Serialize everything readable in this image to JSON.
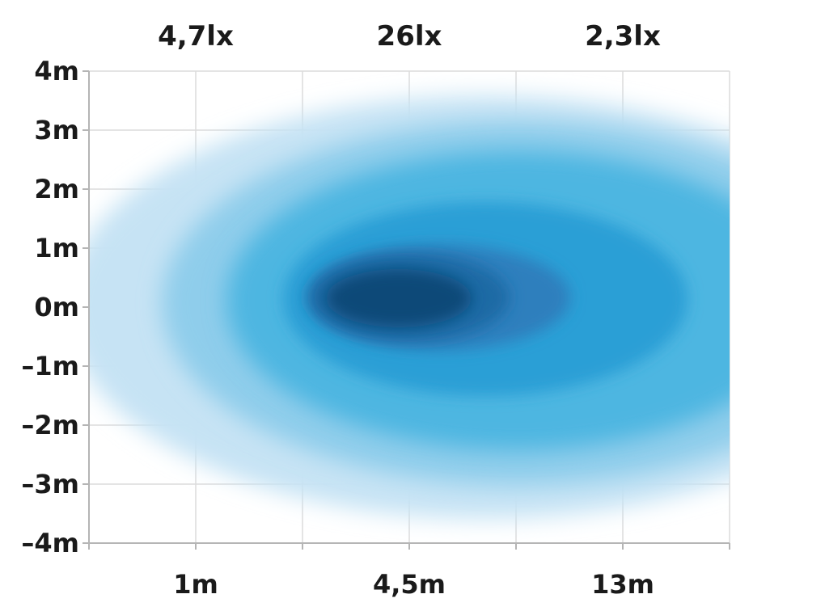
{
  "chart_data": {
    "type": "heatmap",
    "title": "",
    "xlabel": "",
    "ylabel": "",
    "top_labels": [
      {
        "text": "4,7lx",
        "at_x_tick": 1
      },
      {
        "text": "26lx",
        "at_x_tick": 3
      },
      {
        "text": "2,3lx",
        "at_x_tick": 5
      }
    ],
    "x_tick_labels": [
      {
        "text": "1m",
        "at_x_tick": 1
      },
      {
        "text": "4,5m",
        "at_x_tick": 3
      },
      {
        "text": "13m",
        "at_x_tick": 5
      }
    ],
    "x_tick_count": 7,
    "y_ticks": [
      {
        "value": 4,
        "text": "4m"
      },
      {
        "value": 3,
        "text": "3m"
      },
      {
        "value": 2,
        "text": "2m"
      },
      {
        "value": 1,
        "text": "1m"
      },
      {
        "value": 0,
        "text": "0m"
      },
      {
        "value": -1,
        "text": "–1m"
      },
      {
        "value": -2,
        "text": "–2m"
      },
      {
        "value": -3,
        "text": "–3m"
      },
      {
        "value": -4,
        "text": "–4m"
      }
    ],
    "ylim": [
      -4,
      4
    ],
    "grid": true,
    "intensity_levels": [
      {
        "level": 1,
        "color": "#c6e3f4"
      },
      {
        "level": 2,
        "color": "#8fcdeb"
      },
      {
        "level": 3,
        "color": "#4db6e1"
      },
      {
        "level": 4,
        "color": "#2a9fd6"
      },
      {
        "level": 5,
        "color": "#2f7fbd"
      },
      {
        "level": 6,
        "color": "#1f6aa5"
      },
      {
        "level": 7,
        "color": "#0f4a78"
      }
    ]
  }
}
